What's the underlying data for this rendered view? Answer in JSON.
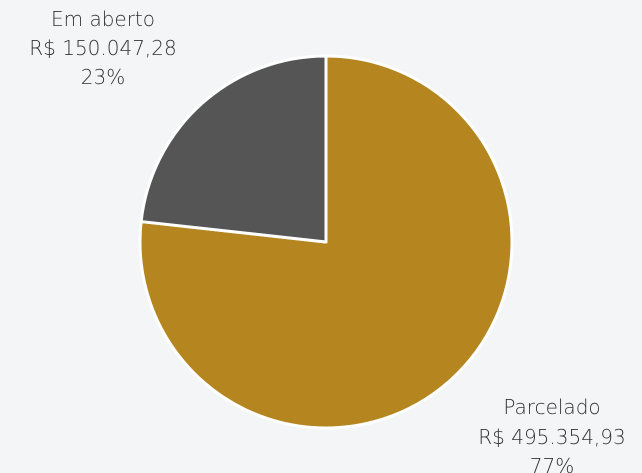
{
  "colors": {
    "background": "#f4f5f7",
    "slice_border": "#ffffff",
    "text": "#333333"
  },
  "chart_data": {
    "type": "pie",
    "legend": "none",
    "slices": [
      {
        "label": "Parcelado",
        "value": 495354.93,
        "value_text": "R$ 495.354,93",
        "percent_text": "77%",
        "color": "#b5851f"
      },
      {
        "label": "Em aberto",
        "value": 150047.28,
        "value_text": "R$ 150.047,28",
        "percent_text": "23%",
        "color": "#555555"
      }
    ]
  }
}
